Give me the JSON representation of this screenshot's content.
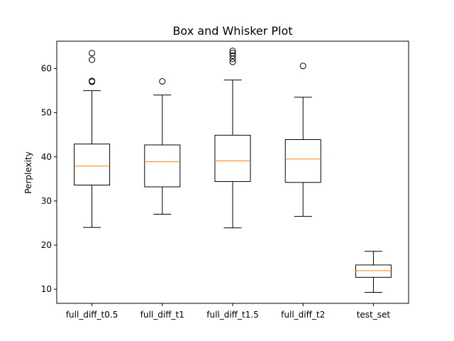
{
  "chart_data": {
    "type": "box",
    "title": "Box and Whisker Plot",
    "xlabel": "",
    "ylabel": "Perplexity",
    "ylim": [
      6.8,
      66.2
    ],
    "yticks": [
      10,
      20,
      30,
      40,
      50,
      60
    ],
    "grid": false,
    "categories": [
      "full_diff_t0.5",
      "full_diff_t1",
      "full_diff_t1.5",
      "full_diff_t2",
      "test_set"
    ],
    "boxes": [
      {
        "whisker_low": 24.0,
        "q1": 33.6,
        "median": 37.9,
        "q3": 42.9,
        "whisker_high": 55.0,
        "outliers": [
          57.0,
          57.2,
          62.0,
          63.5
        ]
      },
      {
        "whisker_low": 27.0,
        "q1": 33.2,
        "median": 38.9,
        "q3": 42.7,
        "whisker_high": 54.0,
        "outliers": [
          57.1
        ]
      },
      {
        "whisker_low": 23.9,
        "q1": 34.4,
        "median": 39.1,
        "q3": 44.9,
        "whisker_high": 57.4,
        "outliers": [
          61.5,
          62.2,
          62.9,
          63.5,
          64.0
        ]
      },
      {
        "whisker_low": 26.5,
        "q1": 34.2,
        "median": 39.5,
        "q3": 43.9,
        "whisker_high": 53.5,
        "outliers": [
          60.6
        ]
      },
      {
        "whisker_low": 9.3,
        "q1": 12.7,
        "median": 14.2,
        "q3": 15.5,
        "whisker_high": 18.6,
        "outliers": []
      }
    ],
    "colors": {
      "box": "#000000",
      "median": "#ff7f0e",
      "background": "#ffffff"
    }
  }
}
